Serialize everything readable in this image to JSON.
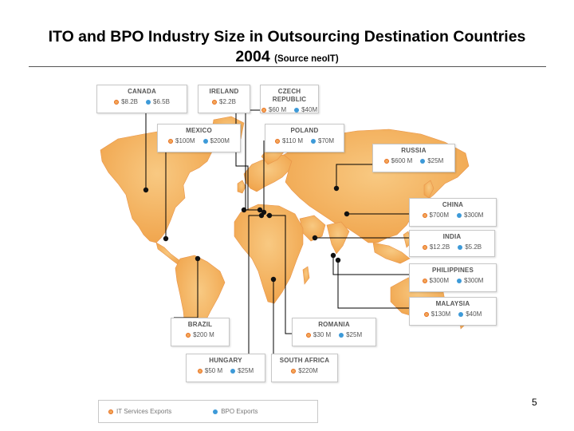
{
  "slide": {
    "title_line1": "ITO and BPO Industry Size in Outsourcing Destination Countries",
    "title_year": "2004",
    "title_source": "(Source neoIT)",
    "page_number": "5"
  },
  "colors": {
    "land": "#f3b25c",
    "land_light": "#f9cf8a",
    "ocean": "#ffffff",
    "it_dot": "#f2a65a",
    "bpo_dot": "#3d9ad8",
    "marker": "#111111"
  },
  "legend": {
    "it_label": "IT Services Exports",
    "bpo_label": "BPO Exports"
  },
  "countries": [
    {
      "id": "canada",
      "name": "CANADA",
      "it": "$8.2B",
      "bpo": "$6.5B"
    },
    {
      "id": "ireland",
      "name": "IRELAND",
      "it": "$2.2B",
      "bpo": ""
    },
    {
      "id": "czech",
      "name": "CZECH REPUBLIC",
      "it": "$60 M",
      "bpo": "$40M"
    },
    {
      "id": "mexico",
      "name": "MEXICO",
      "it": "$100M",
      "bpo": "$200M"
    },
    {
      "id": "poland",
      "name": "POLAND",
      "it": "$110 M",
      "bpo": "$70M"
    },
    {
      "id": "russia",
      "name": "RUSSIA",
      "it": "$600 M",
      "bpo": "$25M"
    },
    {
      "id": "china",
      "name": "CHINA",
      "it": "$700M",
      "bpo": "$300M"
    },
    {
      "id": "india",
      "name": "INDIA",
      "it": "$12.2B",
      "bpo": "$5.2B"
    },
    {
      "id": "philippines",
      "name": "PHILIPPINES",
      "it": "$300M",
      "bpo": "$300M"
    },
    {
      "id": "malaysia",
      "name": "MALAYSIA",
      "it": "$130M",
      "bpo": "$40M"
    },
    {
      "id": "brazil",
      "name": "BRAZIL",
      "it": "$200 M",
      "bpo": ""
    },
    {
      "id": "romania",
      "name": "ROMANIA",
      "it": "$30 M",
      "bpo": "$25M"
    },
    {
      "id": "hungary",
      "name": "HUNGARY",
      "it": "$50 M",
      "bpo": "$25M"
    },
    {
      "id": "south_africa",
      "name": "SOUTH AFRICA",
      "it": "$220M",
      "bpo": ""
    }
  ]
}
